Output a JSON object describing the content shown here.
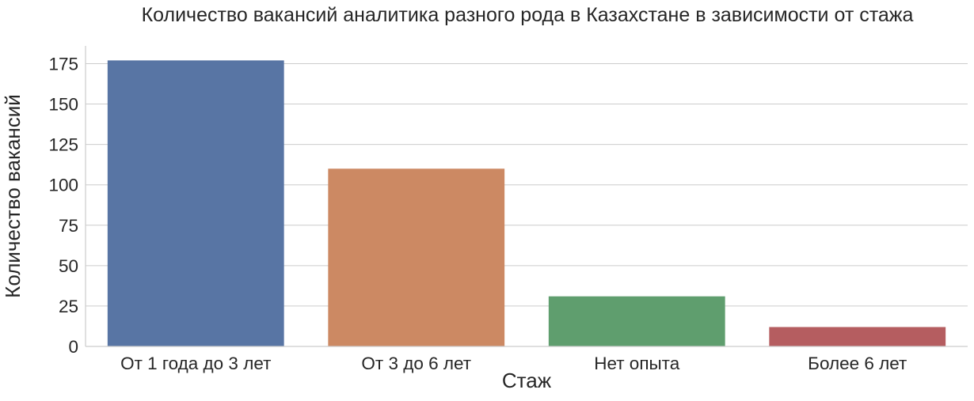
{
  "chart_data": {
    "type": "bar",
    "title": "Количество вакансий аналитика разного рода в Казахстане в зависимости от стажа",
    "xlabel": "Стаж",
    "ylabel": "Количество вакансий",
    "categories": [
      "От 1 года до 3 лет",
      "От 3 до 6 лет",
      "Нет опыта",
      "Более 6 лет"
    ],
    "values": [
      177,
      110,
      31,
      12
    ],
    "colors": [
      "#5875a4",
      "#cc8963",
      "#5f9e6e",
      "#b55d60"
    ],
    "ylim": [
      0,
      186
    ],
    "yticks": [
      0,
      25,
      50,
      75,
      100,
      125,
      150,
      175
    ],
    "grid": "horizontal",
    "legend": "none"
  }
}
